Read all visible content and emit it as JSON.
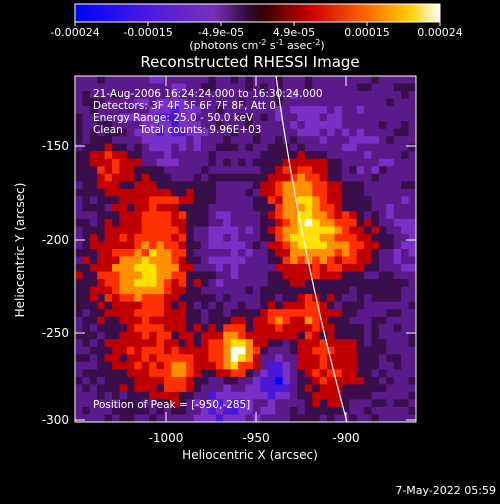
{
  "colorbar": {
    "ticks": [
      "-0.00024",
      "-0.00015",
      "-4.9e-05",
      "4.9e-05",
      "0.00015",
      "0.00024"
    ],
    "unit_main": "(photons cm",
    "unit_exp1": "-2",
    "unit_mid": " s",
    "unit_exp2": "-1",
    "unit_tail": " asec",
    "unit_exp3": "-2",
    "unit_close": ")"
  },
  "image": {
    "title": "Reconstructed RHESSI Image",
    "line_time": "21-Aug-2006 16:24:24.000 to 16:30:24.000",
    "line_detectors": "Detectors: 3F 4F 5F 6F 7F 8F, Att 0",
    "line_energy": "Energy Range: 25.0 - 50.0 keV",
    "line_clean": "Clean     Total counts: 9.96E+03",
    "peak_text": "Position of Peak = [-950,-285]"
  },
  "axes": {
    "xlabel": "Heliocentric X (arcsec)",
    "ylabel": "Heliocentric Y (arcsec)",
    "xticks": [
      "-1000",
      "-950",
      "-900"
    ],
    "yticks": [
      "-150",
      "-200",
      "-250",
      "-300"
    ]
  },
  "footer": {
    "timestamp": "7-May-2022 05:59"
  },
  "colors": {
    "colormap": [
      "#0000ff",
      "#4b17d8",
      "#7a2fc7",
      "#5b1a8a",
      "#3a0e4a",
      "#c00000",
      "#ff3000",
      "#ff9000",
      "#ffe000",
      "#ffffff"
    ]
  },
  "chart_data": {
    "type": "heatmap",
    "title": "Reconstructed RHESSI Image",
    "xlabel": "Heliocentric X (arcsec)",
    "ylabel": "Heliocentric Y (arcsec)",
    "xlim": [
      -1045,
      -865
    ],
    "ylim": [
      -303,
      -117
    ],
    "colorbar_range": [
      -0.00024,
      0.00024
    ],
    "peak": [
      -950,
      -285
    ]
  }
}
